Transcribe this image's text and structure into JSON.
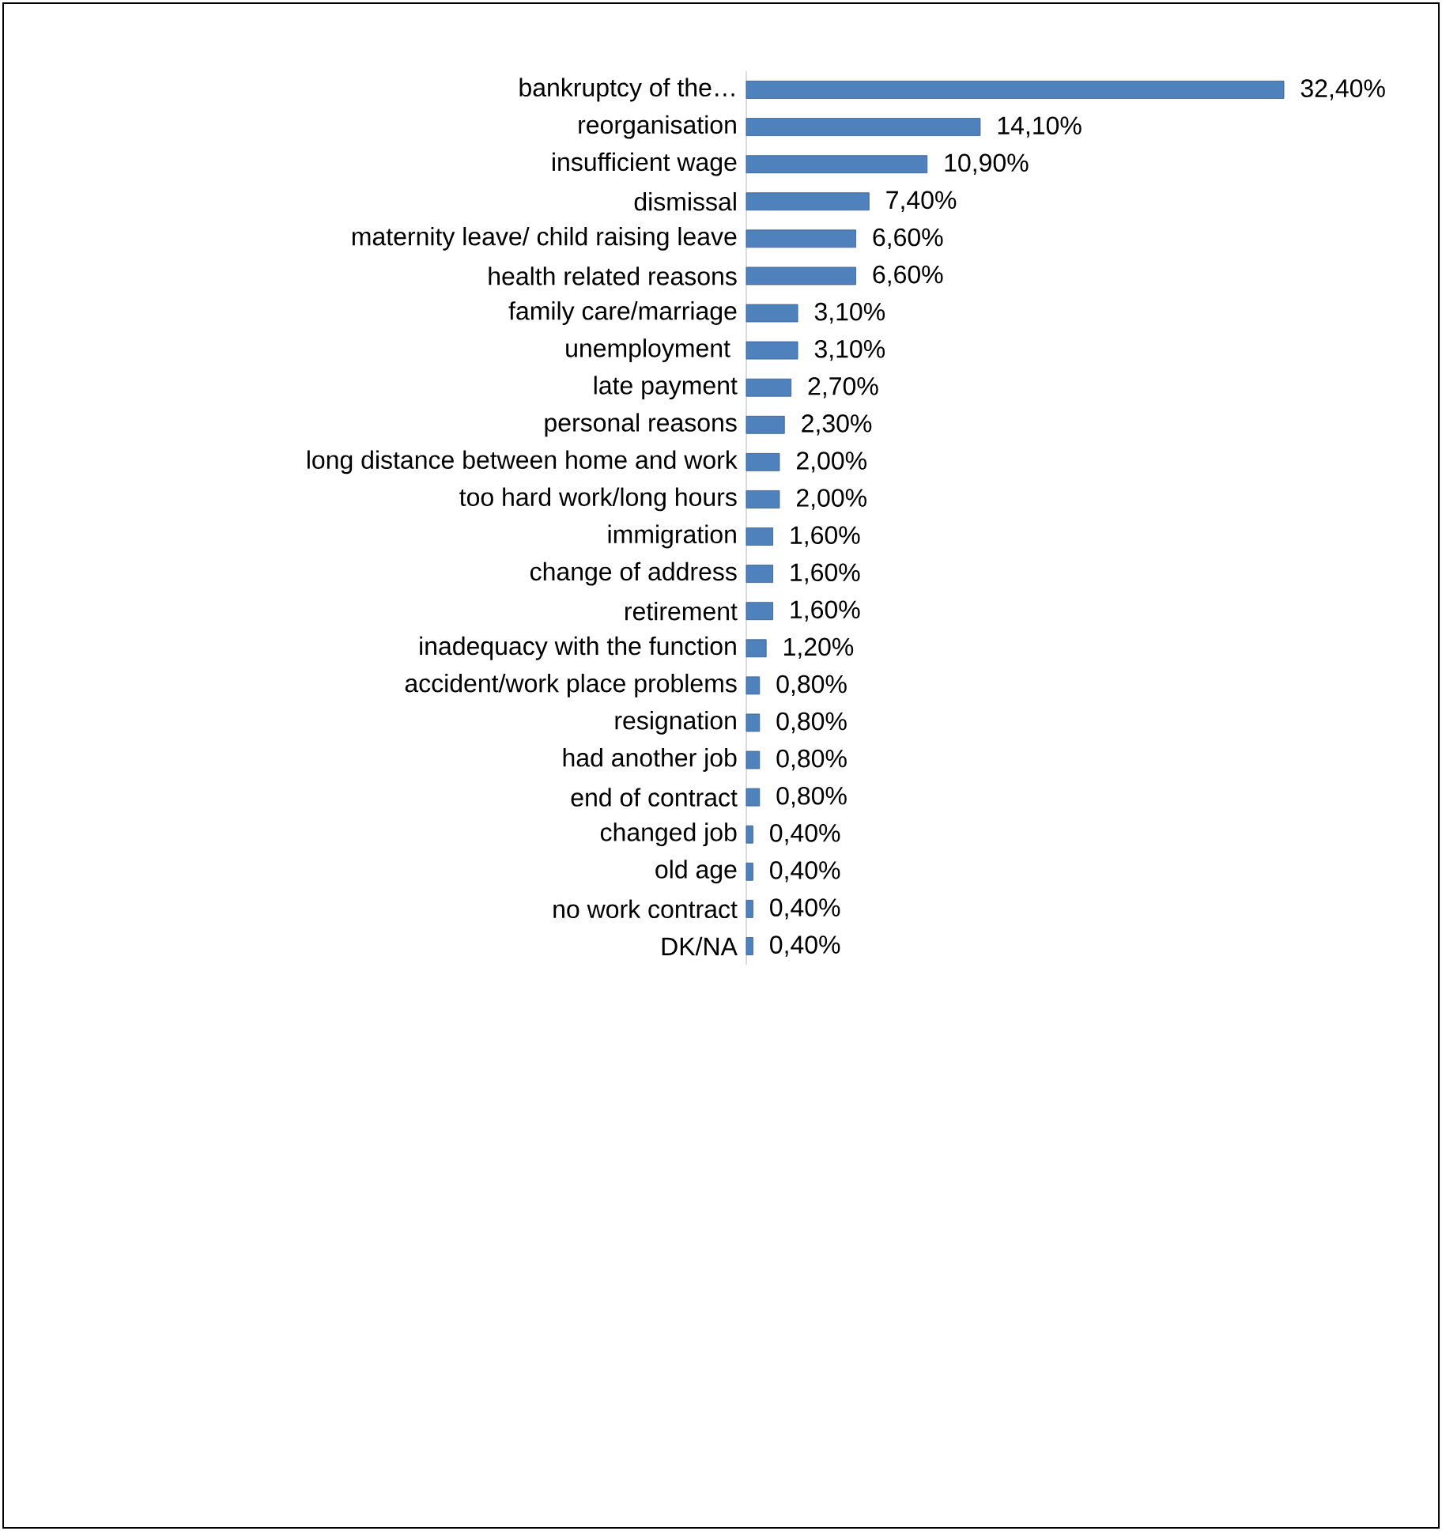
{
  "chart_data": {
    "type": "bar",
    "orientation": "horizontal",
    "color": "#4f81bd",
    "tick_labels": "y",
    "categories": [
      "bankruptcy of the…",
      "reorganisation",
      "insufficient wage",
      "dismissal",
      "maternity leave/ child raising leave",
      "health related reasons",
      "family care/marriage",
      "unemployment ",
      "late payment",
      "personal reasons",
      "long distance between home and work",
      "too hard work/long hours",
      "immigration",
      "change of address",
      "retirement",
      "inadequacy with the function",
      "accident/work place problems",
      "resignation",
      "had another job",
      "end of contract",
      "changed job",
      "old age",
      "no work contract",
      "DK/NA"
    ],
    "values": [
      32.4,
      14.1,
      10.9,
      7.4,
      6.6,
      6.6,
      3.1,
      3.1,
      2.7,
      2.3,
      2.0,
      2.0,
      1.6,
      1.6,
      1.6,
      1.2,
      0.8,
      0.8,
      0.8,
      0.8,
      0.4,
      0.4,
      0.4,
      0.4
    ],
    "value_labels": [
      "32,40%",
      "14,10%",
      "10,90%",
      "7,40%",
      "6,60%",
      "6,60%",
      "3,10%",
      "3,10%",
      "2,70%",
      "2,30%",
      "2,00%",
      "2,00%",
      "1,60%",
      "1,60%",
      "1,60%",
      "1,20%",
      "0,80%",
      "0,80%",
      "0,80%",
      "0,80%",
      "0,40%",
      "0,40%",
      "0,40%",
      "0,40%"
    ]
  }
}
